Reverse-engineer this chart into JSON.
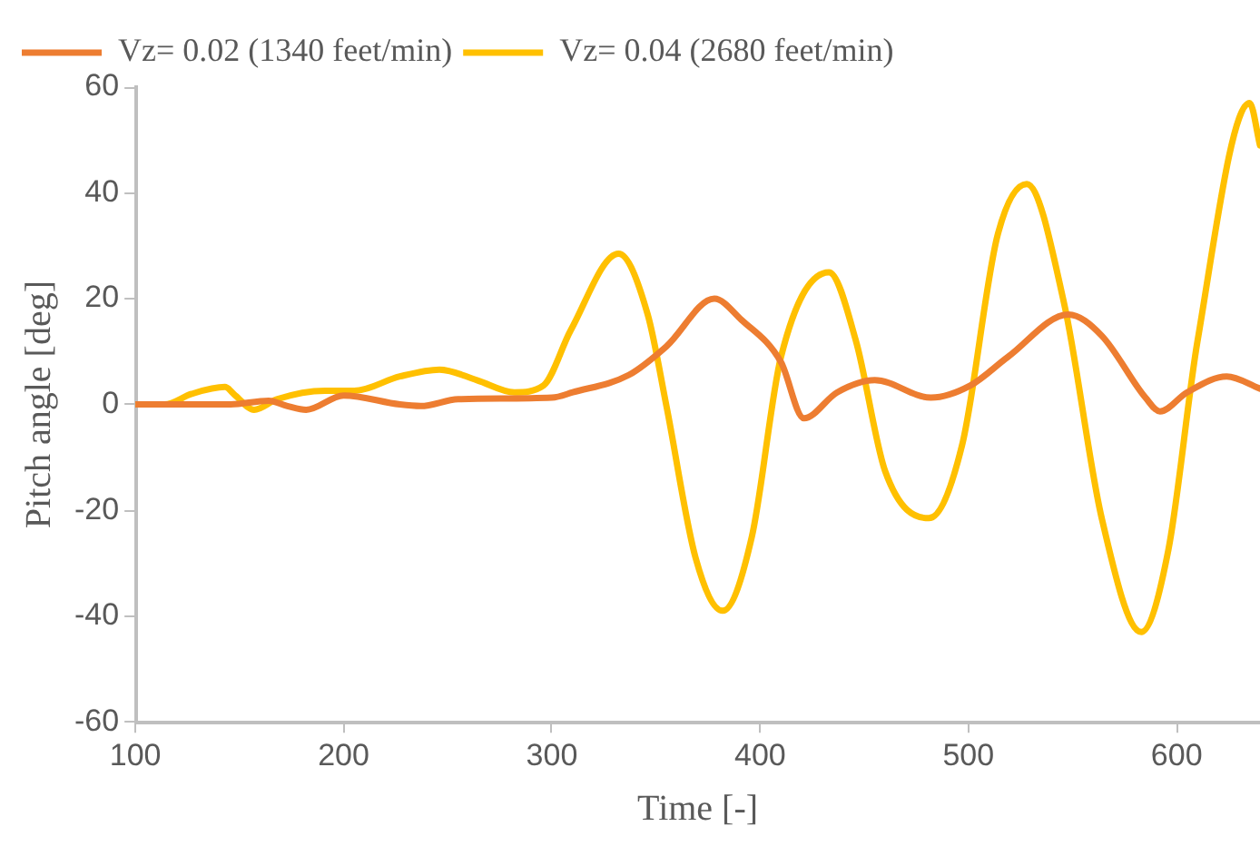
{
  "chart_data": {
    "type": "line",
    "xlabel": "Time [-]",
    "ylabel": "Pitch angle [deg]",
    "xlim": [
      100,
      640
    ],
    "xticks": [
      100,
      200,
      300,
      400,
      500,
      600
    ],
    "ylim": [
      -60,
      60
    ],
    "yticks": [
      -60,
      -40,
      -20,
      0,
      20,
      40,
      60
    ],
    "grid": false,
    "legend": "top left",
    "marker": "none",
    "line_style": "solid",
    "series": [
      {
        "name": "Vz= 0.02 (1340 feet/min)",
        "color": "#ed7d31",
        "x": [
          100,
          145,
          164,
          173,
          182,
          200,
          227,
          237,
          255,
          300,
          310,
          337,
          355,
          378,
          391,
          410,
          421,
          437,
          455,
          482,
          501,
          519,
          548,
          564,
          585,
          592,
          605,
          624,
          640
        ],
        "values": [
          0,
          0,
          0.7,
          -0.3,
          -1,
          1.7,
          0,
          -0.3,
          1,
          1.3,
          2.3,
          5.6,
          11,
          20,
          16,
          8,
          -2.6,
          2.3,
          4.6,
          1.3,
          3.6,
          9,
          17,
          13,
          1.3,
          -1.3,
          2.3,
          5.3,
          3
        ]
      },
      {
        "name": "Vz= 0.04 (2680 feet/min)",
        "color": "#ffc000",
        "x": [
          100,
          114,
          127,
          143,
          148,
          157,
          168,
          191,
          205,
          227,
          246,
          264,
          282,
          296,
          309,
          332,
          346,
          355,
          369,
          382,
          396,
          410,
          433,
          446,
          460,
          481,
          497,
          514,
          528,
          546,
          564,
          583,
          596,
          610,
          635,
          640
        ],
        "values": [
          0,
          0,
          2,
          3.3,
          1.7,
          -1,
          1,
          2.6,
          2.6,
          5.3,
          6.6,
          4.6,
          2.3,
          3.6,
          14,
          28.5,
          17,
          -0.3,
          -29,
          -39,
          -25,
          9,
          25,
          12,
          -12.6,
          -21.5,
          -7.6,
          32,
          41.7,
          19,
          -21.5,
          -43,
          -27.5,
          12,
          57,
          49
        ]
      }
    ]
  }
}
